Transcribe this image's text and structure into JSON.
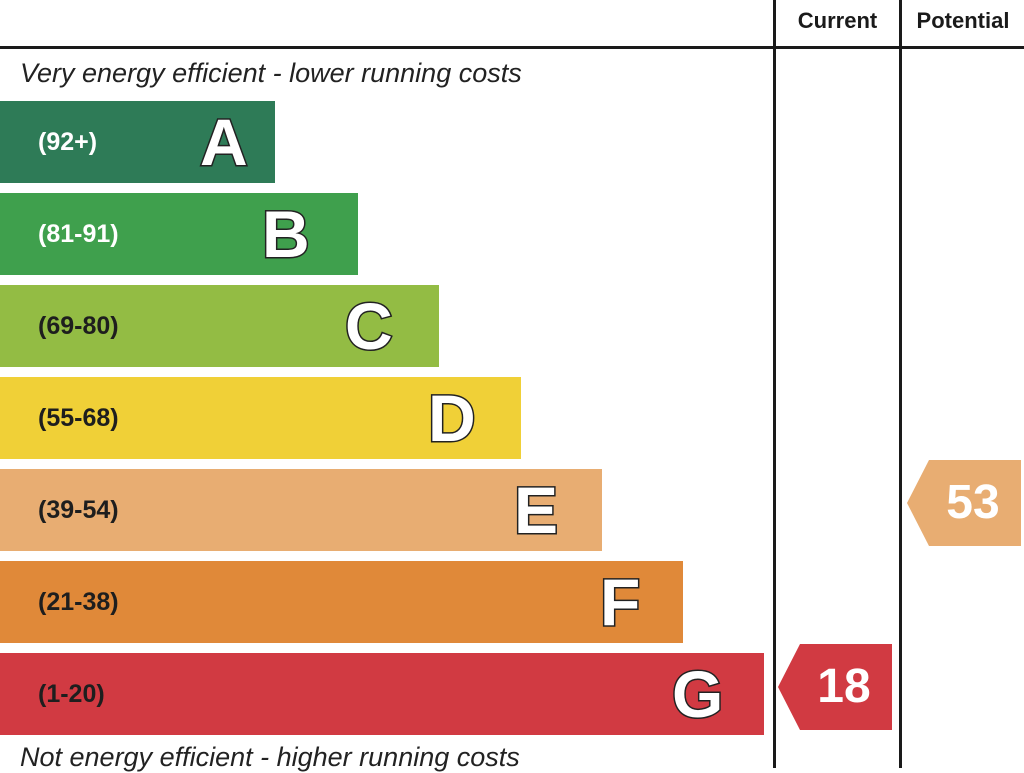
{
  "headers": {
    "current": "Current",
    "potential": "Potential"
  },
  "captions": {
    "top": "Very energy efficient - lower running costs",
    "bottom": "Not energy efficient - higher running costs"
  },
  "chart_data": {
    "type": "bar",
    "categories": [
      "A",
      "B",
      "C",
      "D",
      "E",
      "F",
      "G"
    ],
    "ranges": [
      "(92+)",
      "(81-91)",
      "(69-80)",
      "(55-68)",
      "(39-54)",
      "(21-38)",
      "(1-20)"
    ],
    "colors": [
      "#2e7b57",
      "#3fa04d",
      "#93bc44",
      "#f0d037",
      "#e8ad72",
      "#e08939",
      "#d13a42"
    ],
    "current": {
      "value": "18",
      "band": "G",
      "color": "#d13a42"
    },
    "potential": {
      "value": "53",
      "band": "E",
      "color": "#e8ad72"
    }
  }
}
